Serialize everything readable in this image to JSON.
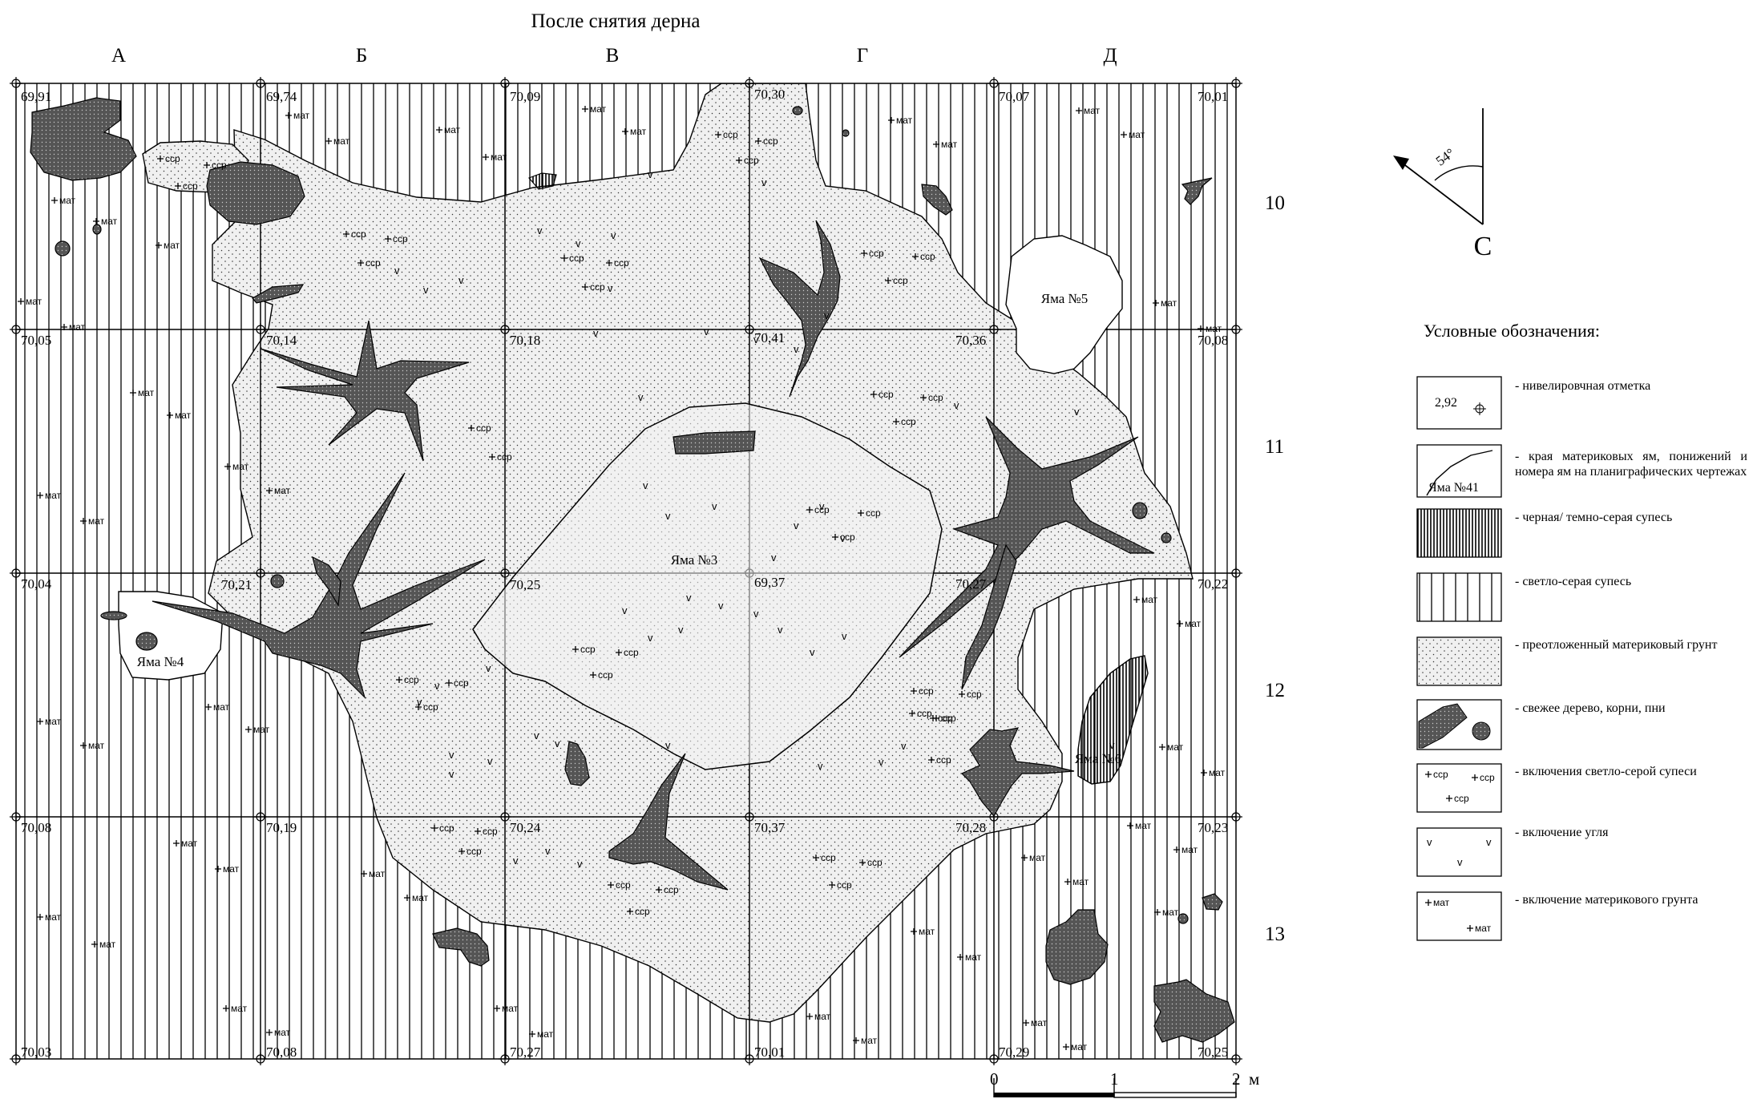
{
  "title": "После снятия дерна",
  "columns": [
    "А",
    "Б",
    "В",
    "Г",
    "Д"
  ],
  "rows": [
    "10",
    "11",
    "12",
    "13"
  ],
  "elevations": [
    [
      "69,91",
      "69,74",
      "70,09",
      "70,30",
      "70,07",
      "70,01"
    ],
    [
      "70,05",
      "70,14",
      "70,18",
      "70,41",
      "70,36",
      "70,08"
    ],
    [
      "70,04",
      "70,21",
      "70,25",
      "69,37",
      "70,27",
      "70,22"
    ],
    [
      "70,08",
      "70,19",
      "70,24",
      "70,37",
      "70,28",
      "70,23"
    ],
    [
      "70,03",
      "70,08",
      "70,27",
      "70,01",
      "70,29",
      "70,25"
    ]
  ],
  "pits": [
    "Яма №3",
    "Яма №4",
    "Яма №5",
    "Яма №6"
  ],
  "inclusion_labels": {
    "ssr": "ccp",
    "mat": "мат",
    "ugol": "v"
  },
  "north": {
    "angle": "54°",
    "letter": "С"
  },
  "scale": {
    "ticks": [
      "0",
      "1",
      "2"
    ],
    "unit": "м"
  },
  "legend": {
    "title": "Условные обозначения:",
    "items": [
      {
        "key": "benchmark",
        "text": "- нивелировчная отметка",
        "sample": "2,92"
      },
      {
        "key": "pit-edge",
        "text": "- края материковых ям, понижений и номера ям на планиграфических чертежах",
        "sample": "Яма №41"
      },
      {
        "key": "dark-sandy-loam",
        "text": "- черная/ темно-серая супесь"
      },
      {
        "key": "light-sandy-loam",
        "text": "- светло-серая супесь"
      },
      {
        "key": "redeposited-soil",
        "text": "- преотложенный материковый грунт"
      },
      {
        "key": "fresh-wood",
        "text": "- свежее дерево, корни, пни"
      },
      {
        "key": "light-inclusions",
        "text": "- включения светло-серой супеси",
        "sample": "ccp"
      },
      {
        "key": "charcoal-inclusions",
        "text": "- включение угля",
        "sample": "v"
      },
      {
        "key": "mainland-inclusions",
        "text": "- включение материкового грунта",
        "sample": "мат"
      }
    ]
  },
  "colors": {
    "wood": "#555555",
    "line": "#000000",
    "background": "#ffffff"
  }
}
